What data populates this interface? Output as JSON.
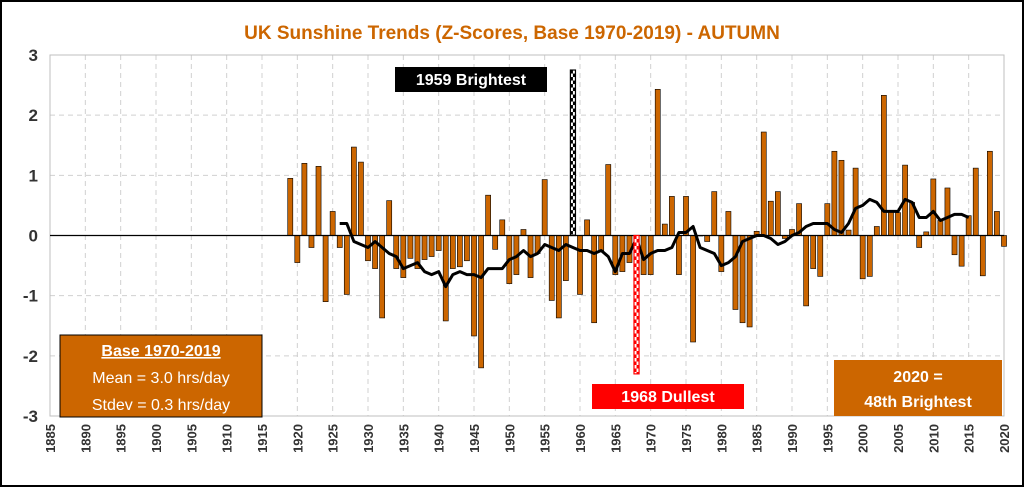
{
  "chart_data": {
    "type": "bar",
    "title": "UK Sunshine Trends (Z-Scores, Base 1970-2019) - AUTUMN",
    "xlabel": "",
    "ylabel": "",
    "xlim": [
      1885,
      2020
    ],
    "ylim": [
      -3,
      3
    ],
    "y_ticks": [
      3,
      2,
      1,
      0,
      -1,
      -2,
      -3
    ],
    "x_ticks": [
      1885,
      1890,
      1895,
      1900,
      1905,
      1910,
      1915,
      1920,
      1925,
      1930,
      1935,
      1940,
      1945,
      1950,
      1955,
      1960,
      1965,
      1970,
      1975,
      1980,
      1985,
      1990,
      1995,
      2000,
      2005,
      2010,
      2015,
      2020
    ],
    "grid": true,
    "bar_color": "#cc6600",
    "line_color": "#000000",
    "series": [
      {
        "kind": "bar",
        "x": [
          1919,
          1920,
          1921,
          1922,
          1923,
          1924,
          1925,
          1926,
          1927,
          1928,
          1929,
          1930,
          1931,
          1932,
          1933,
          1934,
          1935,
          1936,
          1937,
          1938,
          1939,
          1940,
          1941,
          1942,
          1943,
          1944,
          1945,
          1946,
          1947,
          1948,
          1949,
          1950,
          1951,
          1952,
          1953,
          1954,
          1955,
          1956,
          1957,
          1958,
          1959,
          1960,
          1961,
          1962,
          1963,
          1964,
          1965,
          1966,
          1967,
          1968,
          1969,
          1970,
          1971,
          1972,
          1973,
          1974,
          1975,
          1976,
          1977,
          1978,
          1979,
          1980,
          1981,
          1982,
          1983,
          1984,
          1985,
          1986,
          1987,
          1988,
          1989,
          1990,
          1991,
          1992,
          1993,
          1994,
          1995,
          1996,
          1997,
          1998,
          1999,
          2000,
          2001,
          2002,
          2003,
          2004,
          2005,
          2006,
          2007,
          2008,
          2009,
          2010,
          2011,
          2012,
          2013,
          2014,
          2015,
          2016,
          2017,
          2018,
          2019,
          2020
        ],
        "values": [
          0.95,
          -0.45,
          1.2,
          -0.2,
          1.15,
          -1.1,
          0.4,
          -0.2,
          -0.98,
          1.47,
          1.22,
          -0.42,
          -0.55,
          -1.37,
          0.58,
          -0.55,
          -0.7,
          -0.38,
          -0.55,
          -0.4,
          -0.35,
          -0.25,
          -1.42,
          -0.55,
          -0.52,
          -0.42,
          -1.67,
          -2.2,
          0.67,
          -0.23,
          0.26,
          -0.8,
          -0.65,
          0.1,
          -0.7,
          -0.3,
          0.93,
          -1.08,
          -1.37,
          -0.75,
          2.75,
          -0.98,
          0.26,
          -1.45,
          -0.25,
          1.18,
          -0.65,
          -0.6,
          -0.45,
          -2.3,
          -0.65,
          -0.65,
          2.43,
          0.19,
          0.65,
          -0.65,
          0.65,
          -1.77,
          0.0,
          -0.1,
          0.73,
          -0.6,
          0.4,
          -1.23,
          -1.45,
          -1.52,
          0.07,
          1.72,
          0.57,
          0.73,
          -0.05,
          0.1,
          0.53,
          -1.17,
          -0.55,
          -0.68,
          0.53,
          1.4,
          1.25,
          0.09,
          1.12,
          -0.72,
          -0.68,
          0.15,
          2.33,
          0.41,
          0.38,
          1.17,
          0.55,
          -0.2,
          0.06,
          0.94,
          0.25,
          0.79,
          -0.32,
          -0.51,
          0.33,
          1.12,
          -0.67,
          1.4,
          0.4,
          -0.18
        ]
      },
      {
        "kind": "line",
        "name": "",
        "x": [
          1926,
          1927,
          1928,
          1929,
          1930,
          1931,
          1932,
          1933,
          1934,
          1935,
          1936,
          1937,
          1938,
          1939,
          1940,
          1941,
          1942,
          1943,
          1944,
          1945,
          1946,
          1947,
          1948,
          1949,
          1950,
          1951,
          1952,
          1953,
          1954,
          1955,
          1956,
          1957,
          1958,
          1959,
          1960,
          1961,
          1962,
          1963,
          1964,
          1965,
          1966,
          1967,
          1968,
          1969,
          1970,
          1971,
          1972,
          1973,
          1974,
          1975,
          1976,
          1977,
          1978,
          1979,
          1980,
          1981,
          1982,
          1983,
          1984,
          1985,
          1986,
          1987,
          1988,
          1989,
          1990,
          1991,
          1992,
          1993,
          1994,
          1995,
          1996,
          1997,
          1998,
          1999,
          2000,
          2001,
          2002,
          2003,
          2004,
          2005,
          2006,
          2007,
          2008,
          2009,
          2010,
          2011,
          2012,
          2013,
          2014,
          2015
        ],
        "values": [
          0.2,
          0.2,
          -0.1,
          -0.15,
          -0.2,
          -0.1,
          -0.2,
          -0.3,
          -0.35,
          -0.55,
          -0.5,
          -0.45,
          -0.6,
          -0.65,
          -0.6,
          -0.85,
          -0.65,
          -0.6,
          -0.65,
          -0.65,
          -0.7,
          -0.55,
          -0.55,
          -0.55,
          -0.4,
          -0.35,
          -0.25,
          -0.35,
          -0.3,
          -0.15,
          -0.2,
          -0.25,
          -0.15,
          -0.2,
          -0.25,
          -0.25,
          -0.3,
          -0.25,
          -0.35,
          -0.6,
          -0.3,
          -0.3,
          -0.05,
          -0.4,
          -0.3,
          -0.25,
          -0.25,
          -0.2,
          0.05,
          0.05,
          0.15,
          -0.2,
          -0.25,
          -0.3,
          -0.5,
          -0.45,
          -0.35,
          -0.1,
          -0.05,
          0.0,
          0.0,
          -0.05,
          -0.15,
          -0.1,
          0.0,
          0.05,
          0.15,
          0.2,
          0.2,
          0.2,
          0.1,
          0.05,
          0.2,
          0.45,
          0.5,
          0.6,
          0.55,
          0.4,
          0.4,
          0.4,
          0.6,
          0.55,
          0.3,
          0.3,
          0.4,
          0.25,
          0.3,
          0.35,
          0.35,
          0.3
        ]
      }
    ],
    "annotations": {
      "brightest_label": "1959 Brightest",
      "brightest_year": 1959,
      "brightest_value": 2.75,
      "dullest_label": "1968 Dullest",
      "dullest_year": 1968,
      "dullest_value": -2.3,
      "base_box": {
        "title": "Base 1970-2019",
        "mean": "Mean = 3.0 hrs/day",
        "stdev": "Stdev = 0.3 hrs/day"
      },
      "rank_box": {
        "line1": "2020 =",
        "line2": "48th Brightest"
      }
    }
  }
}
